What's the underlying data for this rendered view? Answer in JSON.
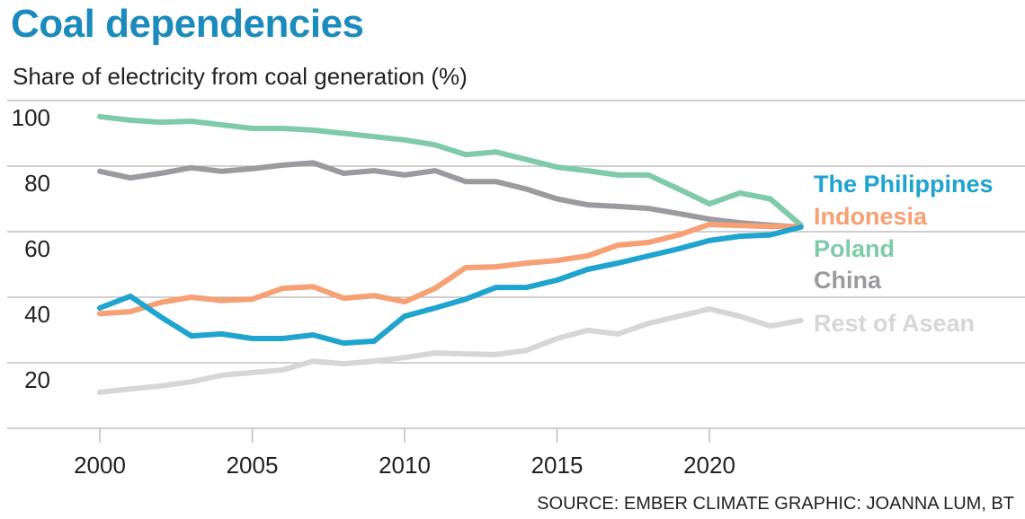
{
  "title": "Coal dependencies",
  "subtitle": "Share of electricity from coal generation (%)",
  "source": "SOURCE: EMBER CLIMATE   GRAPHIC: JOANNA LUM, BT",
  "chart_data": {
    "type": "line",
    "title": "Coal dependencies",
    "ylabel": "Share of electricity from coal generation (%)",
    "xlabel": "",
    "x": [
      2000,
      2001,
      2002,
      2003,
      2004,
      2005,
      2006,
      2007,
      2008,
      2009,
      2010,
      2011,
      2012,
      2013,
      2014,
      2015,
      2016,
      2017,
      2018,
      2019,
      2020,
      2021,
      2022,
      2023
    ],
    "xticks": [
      2000,
      2005,
      2010,
      2015,
      2020
    ],
    "xtick_labels": [
      "2000",
      "2005",
      "2010",
      "2015",
      "2020"
    ],
    "yticks": [
      20,
      40,
      60,
      80,
      100
    ],
    "ytick_labels": [
      "20",
      "40",
      "60",
      "80",
      "100"
    ],
    "ylim": [
      0,
      100
    ],
    "xlim": [
      1997,
      2030
    ],
    "grid": true,
    "legend": "right, inline labels",
    "series": [
      {
        "name": "The Philippines",
        "color": "#1fa3cf",
        "values": [
          36.7,
          40.3,
          34,
          28.2,
          28.8,
          27.4,
          27.4,
          28.5,
          26,
          26.6,
          34.2,
          36.7,
          39.4,
          43,
          43,
          45.2,
          48.5,
          50.4,
          52.6,
          54.8,
          57.3,
          58.6,
          59,
          61.4
        ]
      },
      {
        "name": "Indonesia",
        "color": "#f6a073",
        "values": [
          35,
          35.6,
          38.4,
          40,
          39,
          39.4,
          42.7,
          43.2,
          39.7,
          40.5,
          38.6,
          42.7,
          49,
          49.3,
          50.4,
          51.2,
          52.6,
          55.9,
          56.7,
          59,
          62.2,
          61.9,
          61.6,
          61.6
        ]
      },
      {
        "name": "Poland",
        "color": "#7ecaa9",
        "values": [
          95.1,
          94,
          93.4,
          93.7,
          92.6,
          91.5,
          91.5,
          91,
          90,
          89,
          88,
          86.5,
          83.5,
          84.3,
          82,
          79.7,
          78.6,
          77.3,
          77.3,
          73,
          68.5,
          71.8,
          70,
          62
        ]
      },
      {
        "name": "China",
        "color": "#9b9b9f",
        "values": [
          78.4,
          76.4,
          77.8,
          79.5,
          78.4,
          79.2,
          80.3,
          81,
          77.8,
          78.6,
          77.3,
          78.6,
          75.3,
          75.3,
          73,
          70,
          68.2,
          67.7,
          67.1,
          65.5,
          63.8,
          62.7,
          62,
          61.4
        ]
      },
      {
        "name": "Rest of Asean",
        "color": "#d6d6d6",
        "values": [
          11,
          12,
          12.9,
          14.2,
          16.2,
          17,
          17.8,
          20.5,
          19.7,
          20.5,
          21.6,
          23,
          22.7,
          22.5,
          23.8,
          27.4,
          29.9,
          28.8,
          32,
          34.2,
          36.4,
          34.2,
          31.2,
          32.9
        ]
      }
    ]
  }
}
